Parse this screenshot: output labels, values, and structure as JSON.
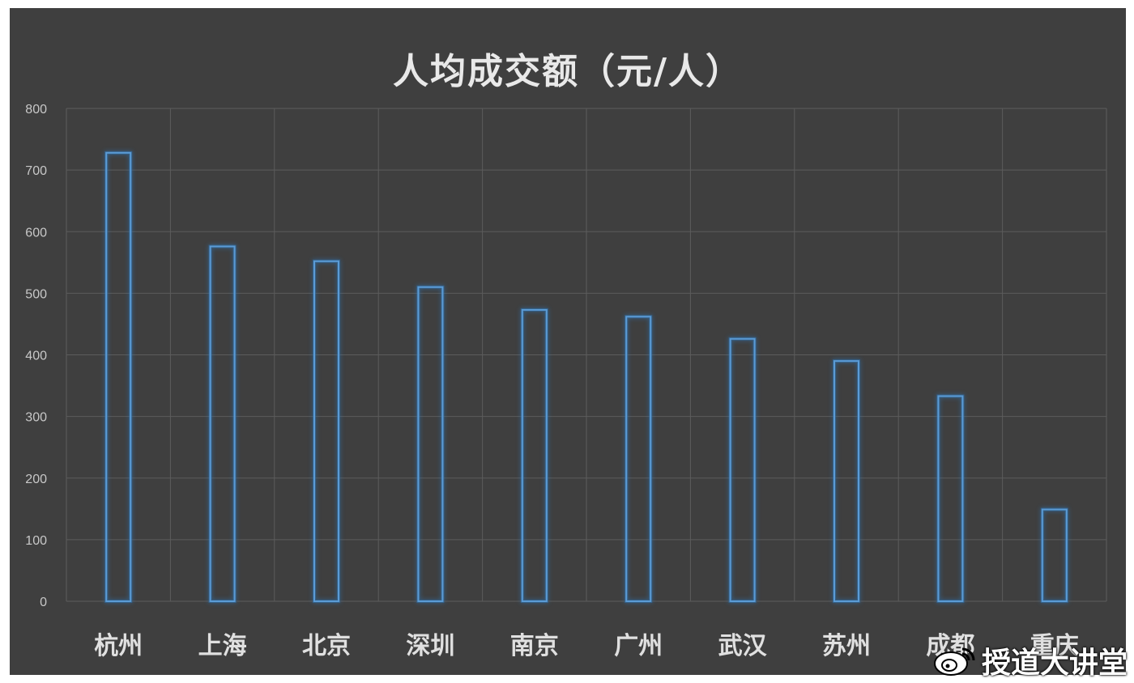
{
  "chart_data": {
    "type": "bar",
    "title": "人均成交额（元/人）",
    "categories": [
      "杭州",
      "上海",
      "北京",
      "深圳",
      "南京",
      "广州",
      "武汉",
      "苏州",
      "成都",
      "重庆"
    ],
    "values": [
      728,
      576,
      552,
      510,
      473,
      462,
      426,
      390,
      333,
      149
    ],
    "ylim": [
      0,
      800
    ],
    "yticks": [
      0,
      100,
      200,
      300,
      400,
      500,
      600,
      700,
      800
    ],
    "grid": true,
    "bar_style": "outline",
    "colors": {
      "background": "#3f3f3f",
      "grid": "#5c5c5c",
      "bar_stroke": "#5b9bd5",
      "bar_glow": "#2e75b6",
      "tick_text": "#c8c8c8",
      "category_text": "#e0e0e0"
    }
  },
  "watermark": {
    "text": "授道大讲堂",
    "icon": "weibo-logo-icon"
  }
}
